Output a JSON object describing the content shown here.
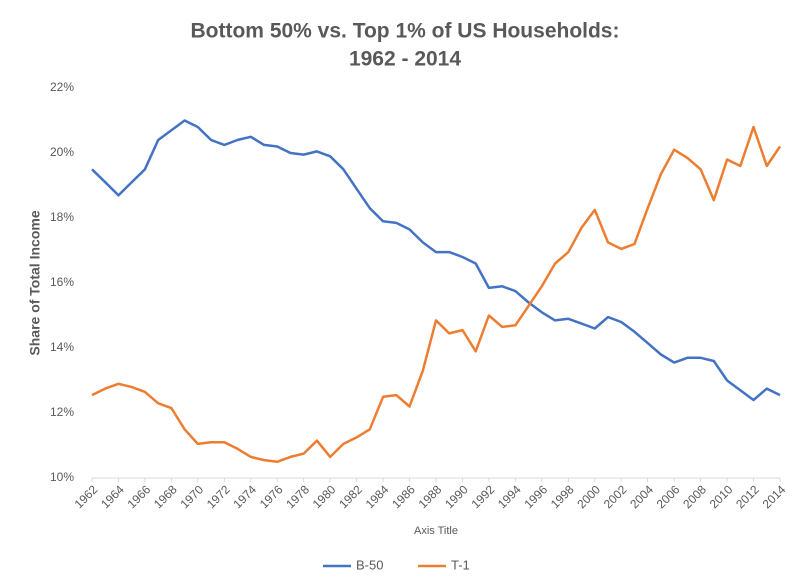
{
  "chart_data": {
    "type": "line",
    "title": [
      "Bottom 50% vs. Top 1% of US Households:",
      "1962 - 2014"
    ],
    "x_label": "Axis Title",
    "y_label": "Share of Total Income",
    "x": [
      1962,
      1963,
      1964,
      1965,
      1966,
      1967,
      1968,
      1969,
      1970,
      1971,
      1972,
      1973,
      1974,
      1975,
      1976,
      1977,
      1978,
      1979,
      1980,
      1981,
      1982,
      1983,
      1984,
      1985,
      1986,
      1987,
      1988,
      1989,
      1990,
      1991,
      1992,
      1993,
      1994,
      1995,
      1996,
      1997,
      1998,
      1999,
      2000,
      2001,
      2002,
      2003,
      2004,
      2005,
      2006,
      2007,
      2008,
      2009,
      2010,
      2011,
      2012,
      2013,
      2014
    ],
    "xlim": [
      1962,
      2014
    ],
    "xticks": [
      1962,
      1964,
      1966,
      1968,
      1970,
      1972,
      1974,
      1976,
      1978,
      1980,
      1982,
      1984,
      1986,
      1988,
      1990,
      1992,
      1994,
      1996,
      1998,
      2000,
      2002,
      2004,
      2006,
      2008,
      2010,
      2012,
      2014
    ],
    "ylim": [
      10,
      22
    ],
    "yticks": [
      {
        "value": 10,
        "label": "10%"
      },
      {
        "value": 12,
        "label": "12%"
      },
      {
        "value": 14,
        "label": "14%"
      },
      {
        "value": 16,
        "label": "16%"
      },
      {
        "value": 18,
        "label": "18%"
      },
      {
        "value": 20,
        "label": "20%"
      },
      {
        "value": 22,
        "label": "22%"
      }
    ],
    "grid": false,
    "legend": "bottom",
    "series": [
      {
        "name": "B-50",
        "color": "#4472c4",
        "values": [
          19.5,
          19.1,
          18.7,
          19.1,
          19.5,
          20.4,
          20.7,
          21.0,
          20.8,
          20.4,
          20.25,
          20.4,
          20.5,
          20.25,
          20.2,
          20.0,
          19.95,
          20.05,
          19.9,
          19.5,
          18.9,
          18.3,
          17.9,
          17.85,
          17.65,
          17.25,
          16.95,
          16.95,
          16.8,
          16.6,
          15.85,
          15.9,
          15.75,
          15.4,
          15.1,
          14.85,
          14.9,
          14.75,
          14.6,
          14.95,
          14.8,
          14.5,
          14.15,
          13.8,
          13.55,
          13.7,
          13.7,
          13.6,
          13.0,
          12.7,
          12.4,
          12.75,
          12.55
        ]
      },
      {
        "name": "T-1",
        "color": "#ed7d31",
        "values": [
          12.55,
          12.75,
          12.9,
          12.8,
          12.65,
          12.3,
          12.15,
          11.5,
          11.05,
          11.1,
          11.1,
          10.9,
          10.65,
          10.55,
          10.5,
          10.65,
          10.75,
          11.15,
          10.65,
          11.05,
          11.25,
          11.5,
          12.5,
          12.55,
          12.2,
          13.3,
          14.85,
          14.45,
          14.55,
          13.9,
          15.0,
          14.65,
          14.7,
          15.3,
          15.9,
          16.6,
          16.95,
          17.7,
          18.25,
          17.25,
          17.05,
          17.2,
          18.3,
          19.35,
          20.1,
          19.85,
          19.5,
          18.55,
          19.8,
          19.6,
          20.8,
          19.6,
          20.2
        ]
      }
    ]
  }
}
